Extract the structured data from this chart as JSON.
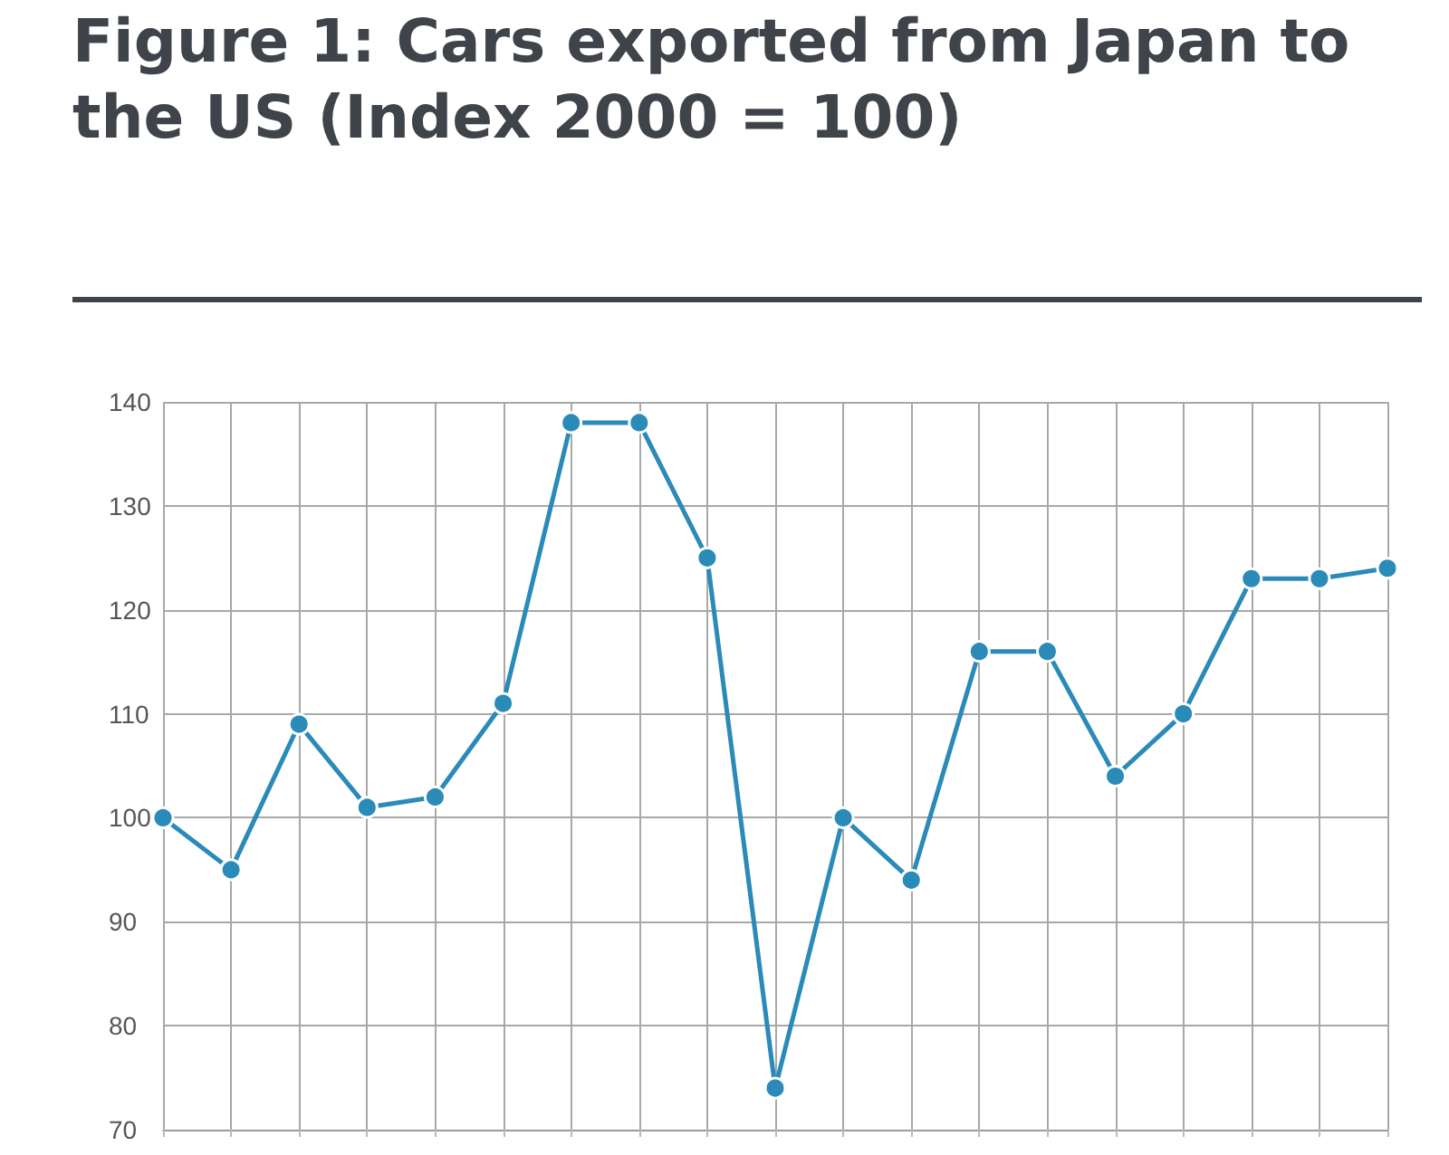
{
  "chart_data": {
    "type": "line",
    "title": "Figure 1: Cars exported from Japan to the US (Index 2000 = 100)",
    "categories": [
      null,
      null,
      null,
      null,
      null,
      null,
      null,
      null,
      null,
      null,
      null,
      null,
      null,
      null,
      null,
      null,
      null,
      null,
      null
    ],
    "series": [
      {
        "color": "#2a8ab8",
        "values": [
          100,
          95,
          109,
          101,
          102,
          111,
          138,
          138,
          125,
          74,
          100,
          94,
          116,
          116,
          104,
          110,
          123,
          123,
          124
        ]
      }
    ],
    "ylim": [
      70,
      140
    ],
    "yticks": [
      70,
      80,
      90,
      100,
      110,
      120,
      130,
      140
    ],
    "grid": true,
    "marker": "circle",
    "line_style": "solid",
    "tick_labels": "y"
  }
}
